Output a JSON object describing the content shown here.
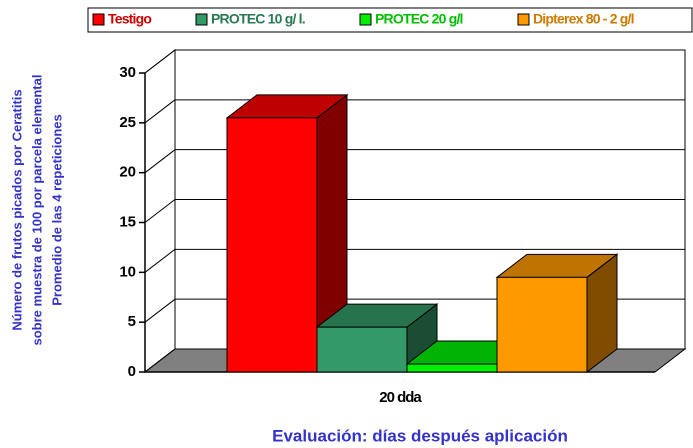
{
  "chart_data": {
    "type": "bar3d",
    "categories": [
      "20 dda"
    ],
    "series": [
      {
        "name": "Testigo",
        "color": "#ff0000",
        "values": [
          25.5
        ]
      },
      {
        "name": "PROTEC 10 g/ l.",
        "color": "#339966",
        "values": [
          4.5
        ]
      },
      {
        "name": "PROTEC 20 g/l",
        "color": "#00ee00",
        "values": [
          0.8
        ]
      },
      {
        "name": "Dipterex 80 - 2 g/l",
        "color": "#ff9900",
        "values": [
          9.5
        ]
      }
    ],
    "ylim": [
      0,
      30
    ],
    "yticks": [
      0,
      5,
      10,
      15,
      20,
      25,
      30
    ],
    "grid": true,
    "xlabel": "Evaluación: días después aplicación",
    "ylabel": [
      "Número de frutos picados por Ceratitis",
      "sobre muestra de 100 por parcela elemental",
      "Promedio de  las 4 repeticiones"
    ],
    "legend": "top"
  }
}
